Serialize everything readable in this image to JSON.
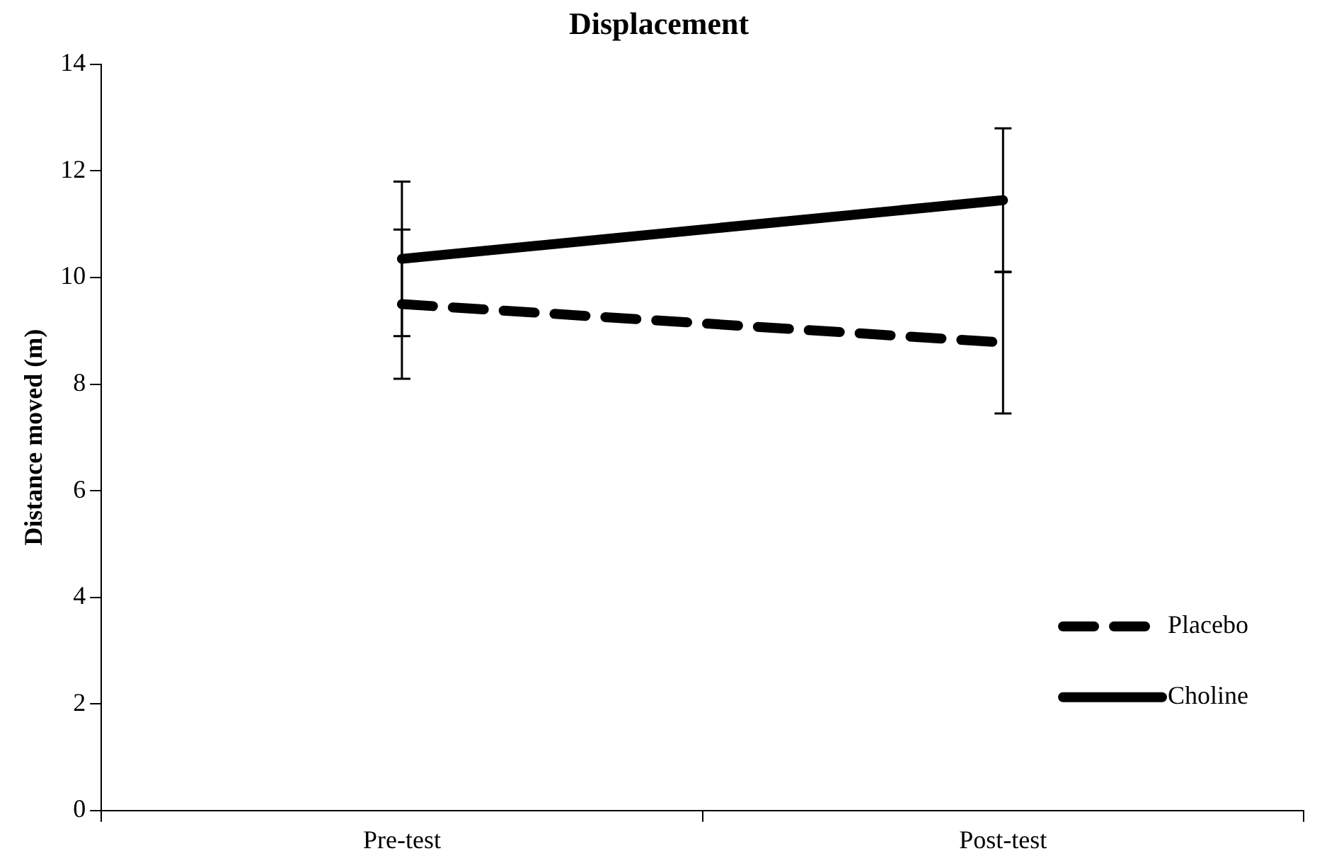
{
  "chart_data": {
    "type": "line",
    "title": "Displacement",
    "ylabel": "Distance moved (m)",
    "categories": [
      "Pre-test",
      "Post-test"
    ],
    "series": [
      {
        "name": "Placebo",
        "color": "#000000",
        "values": [
          9.5,
          8.78
        ],
        "errors": [
          1.4,
          1.33
        ],
        "line_style": "dashed"
      },
      {
        "name": "Choline",
        "color": "#000000",
        "values": [
          10.35,
          11.45
        ],
        "errors": [
          1.45,
          1.35
        ],
        "line_style": "solid"
      }
    ],
    "ylim": [
      0,
      14
    ],
    "yticks": [
      0,
      2,
      4,
      6,
      8,
      10,
      12,
      14
    ],
    "grid": false,
    "legend": "bottom right",
    "marker": "none"
  }
}
